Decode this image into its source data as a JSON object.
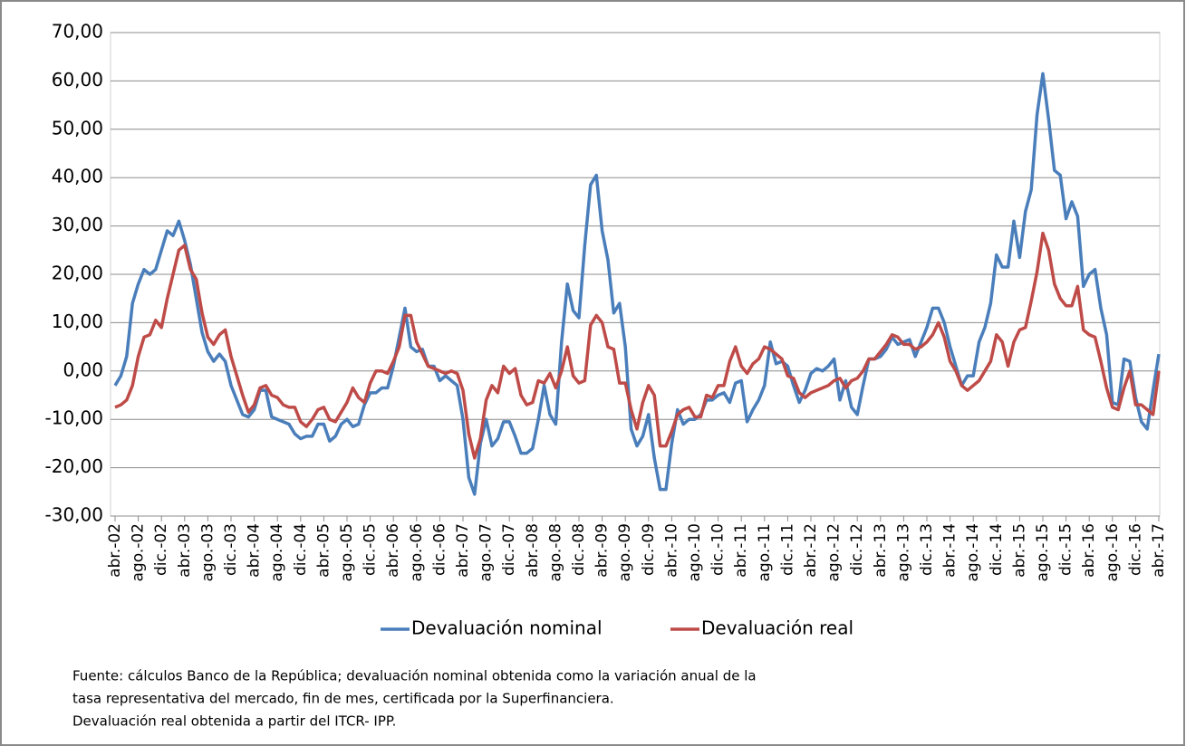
{
  "chart_data": {
    "type": "line",
    "categories": [
      "abr.-02",
      null,
      null,
      null,
      "ago.-02",
      null,
      null,
      null,
      "dic.-02",
      null,
      null,
      null,
      "abr.-03",
      null,
      null,
      null,
      "ago.-03",
      null,
      null,
      null,
      "dic.-03",
      null,
      null,
      null,
      "abr.-04",
      null,
      null,
      null,
      "ago.-04",
      null,
      null,
      null,
      "dic.-04",
      null,
      null,
      null,
      "abr.-05",
      null,
      null,
      null,
      "ago.-05",
      null,
      null,
      null,
      "dic.-05",
      null,
      null,
      null,
      "abr.-06",
      null,
      null,
      null,
      "ago.-06",
      null,
      null,
      null,
      "dic.-06",
      null,
      null,
      null,
      "abr.-07",
      null,
      null,
      null,
      "ago.-07",
      null,
      null,
      null,
      "dic.-07",
      null,
      null,
      null,
      "abr.-08",
      null,
      null,
      null,
      "ago.-08",
      null,
      null,
      null,
      "dic.-08",
      null,
      null,
      null,
      "abr.-09",
      null,
      null,
      null,
      "ago.-09",
      null,
      null,
      null,
      "dic.-09",
      null,
      null,
      null,
      "abr.-10",
      null,
      null,
      null,
      "ago.-10",
      null,
      null,
      null,
      "dic.-10",
      null,
      null,
      null,
      "abr.-11",
      null,
      null,
      null,
      "ago.-11",
      null,
      null,
      null,
      "dic.-11",
      null,
      null,
      null,
      "abr.-12",
      null,
      null,
      null,
      "ago.-12",
      null,
      null,
      null,
      "dic.-12",
      null,
      null,
      null,
      "abr.-13",
      null,
      null,
      null,
      "ago.-13",
      null,
      null,
      null,
      "dic.-13",
      null,
      null,
      null,
      "abr.-14",
      null,
      null,
      null,
      "ago.-14",
      null,
      null,
      null,
      "dic.-14",
      null,
      null,
      null,
      "abr.-15",
      null,
      null,
      null,
      "ago.-15",
      null,
      null,
      null,
      "dic.-15",
      null,
      null,
      null,
      "abr.-16",
      null,
      null,
      null,
      "ago.-16",
      null,
      null,
      null,
      "dic.-16",
      null,
      null,
      null,
      "abr.-17"
    ],
    "series": [
      {
        "name": "Devaluación nominal",
        "color": "#4a7ebb",
        "values": [
          -3,
          -1,
          3,
          14,
          18,
          21,
          20,
          21,
          25,
          29,
          28,
          31,
          27,
          22,
          15,
          8,
          4,
          2,
          3.5,
          2,
          -3,
          -6,
          -9,
          -9.5,
          -8,
          -4,
          -4,
          -9.5,
          -10,
          -10.5,
          -11,
          -13,
          -14,
          -13.5,
          -13.5,
          -11,
          -11,
          -14.5,
          -13.5,
          -11,
          -10,
          -11.5,
          -11,
          -7,
          -4.5,
          -4.5,
          -3.5,
          -3.5,
          1,
          7,
          13,
          5,
          4,
          4.5,
          1,
          1,
          -2,
          -1,
          -2,
          -3,
          -10,
          -22,
          -25.5,
          -15,
          -10,
          -15.5,
          -14,
          -10.5,
          -10.5,
          -13.5,
          -17,
          -17,
          -16,
          -10,
          -3,
          -9,
          -11,
          6,
          18,
          12.5,
          11,
          26,
          38.5,
          40.5,
          29,
          23,
          12,
          14,
          5,
          -12,
          -15.5,
          -13.5,
          -9,
          -18,
          -24.5,
          -24.5,
          -15,
          -8,
          -11,
          -10,
          -10,
          -9,
          -6,
          -6,
          -5,
          -4.5,
          -6.5,
          -2.5,
          -2,
          -10.5,
          -8,
          -6,
          -3,
          6,
          1.5,
          2,
          1,
          -3,
          -6.5,
          -4,
          -0.5,
          0.5,
          0,
          1,
          2.5,
          -6,
          -2,
          -7.5,
          -9,
          -3,
          2.5,
          2.5,
          3,
          4.5,
          7,
          5.5,
          6,
          6.5,
          3,
          6,
          9,
          13,
          13,
          10,
          5,
          1,
          -3,
          -1,
          -1,
          6,
          9,
          14,
          24,
          21.5,
          21.5,
          31,
          23.5,
          33,
          37.5,
          53,
          61.5,
          52,
          41.5,
          40.5,
          31.5,
          35,
          32,
          17.5,
          20,
          21,
          13,
          7.5,
          -6.5,
          -7,
          2.5,
          2,
          -5.5,
          -10.5,
          -12,
          -4,
          3.5
        ]
      },
      {
        "name": "Devaluación real",
        "color": "#be4b48",
        "values": [
          -7.5,
          -7,
          -6,
          -3,
          3,
          7,
          7.5,
          10.5,
          9,
          15,
          20,
          25,
          26,
          21,
          19,
          12,
          7,
          5.5,
          7.5,
          8.5,
          3,
          -1,
          -5,
          -8.5,
          -7,
          -3.5,
          -3,
          -5,
          -5.5,
          -7,
          -7.5,
          -7.5,
          -10.5,
          -11.5,
          -10,
          -8,
          -7.5,
          -10,
          -10.5,
          -8.5,
          -6.5,
          -3.5,
          -5.5,
          -6.5,
          -2.5,
          0,
          0,
          -0.5,
          2,
          5,
          11.5,
          11.5,
          6,
          3.5,
          1,
          0.5,
          0,
          -0.5,
          0,
          -0.5,
          -4,
          -13,
          -18,
          -14,
          -6,
          -3,
          -4.5,
          1,
          -0.5,
          0.5,
          -5,
          -7,
          -6.5,
          -2,
          -2.5,
          -0.5,
          -3.5,
          0,
          5,
          -1,
          -2.5,
          -2,
          9.5,
          11.5,
          10,
          5,
          4.5,
          -2.5,
          -2.5,
          -8,
          -12,
          -6.5,
          -3,
          -5,
          -15.5,
          -15.5,
          -12.5,
          -9,
          -8,
          -7.5,
          -9.5,
          -9.5,
          -5,
          -5.5,
          -3,
          -3,
          2,
          5,
          1,
          -0.5,
          1.5,
          2.5,
          5,
          4.5,
          3.5,
          2.5,
          -1,
          -1.5,
          -4.5,
          -5.5,
          -4.5,
          -4,
          -3.5,
          -3,
          -2,
          -1.5,
          -3.5,
          -2,
          -1.5,
          0,
          2.5,
          2.5,
          4,
          5.5,
          7.5,
          7,
          5.5,
          5.5,
          4.5,
          5,
          6,
          7.5,
          10,
          7,
          2,
          0,
          -3,
          -4,
          -3,
          -2,
          0,
          2,
          7.5,
          6,
          1,
          6,
          8.5,
          9,
          14.5,
          20.5,
          28.5,
          25,
          18,
          15,
          13.5,
          13.5,
          17.5,
          8.5,
          7.5,
          7,
          2,
          -3.5,
          -7.5,
          -8,
          -3.5,
          0,
          -7,
          -7,
          -8,
          -9,
          0
        ]
      }
    ],
    "ylim": [
      -30,
      70
    ],
    "yticks": [
      {
        "value": -30,
        "label": "-30,00"
      },
      {
        "value": -20,
        "label": "-20,00"
      },
      {
        "value": -10,
        "label": "-10,00"
      },
      {
        "value": 0,
        "label": "0,00"
      },
      {
        "value": 10,
        "label": "10,00"
      },
      {
        "value": 20,
        "label": "20,00"
      },
      {
        "value": 30,
        "label": "30,00"
      },
      {
        "value": 40,
        "label": "40,00"
      },
      {
        "value": 50,
        "label": "50,00"
      },
      {
        "value": 60,
        "label": "60,00"
      },
      {
        "value": 70,
        "label": "70,00"
      }
    ],
    "grid": true,
    "legend": "bottom",
    "notes": [
      "Fuente: cálculos Banco de la República; devaluación nominal obtenida como la variación anual de la",
      "tasa representativa del mercado, fin de mes, certificada por la Superfinanciera.",
      "Devaluación real obtenida a partir del ITCR- IPP."
    ]
  }
}
